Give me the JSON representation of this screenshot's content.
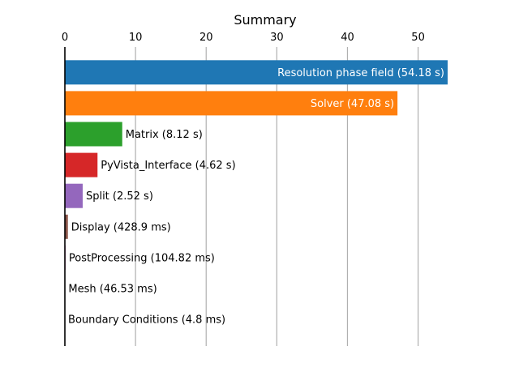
{
  "chart_data": {
    "type": "bar",
    "orientation": "horizontal",
    "title": "Summary",
    "xlabel": "",
    "ylabel": "",
    "xlim": [
      0,
      54.18
    ],
    "x_ticks": [
      0,
      10,
      20,
      30,
      40,
      50
    ],
    "grid": "vertical",
    "legend": "none",
    "bars": [
      {
        "label": "Resolution phase field (54.18 s)",
        "value": 54.18,
        "color": "#1f77b4",
        "label_inside": true
      },
      {
        "label": "Solver (47.08 s)",
        "value": 47.08,
        "color": "#ff7f0e",
        "label_inside": true
      },
      {
        "label": "Matrix (8.12 s)",
        "value": 8.12,
        "color": "#2ca02c",
        "label_inside": false
      },
      {
        "label": "PyVista_Interface (4.62 s)",
        "value": 4.62,
        "color": "#d62728",
        "label_inside": false
      },
      {
        "label": "Split (2.52 s)",
        "value": 2.52,
        "color": "#9467bd",
        "label_inside": false
      },
      {
        "label": "Display (428.9 ms)",
        "value": 0.4289,
        "color": "#8c564b",
        "label_inside": false
      },
      {
        "label": "PostProcessing (104.82 ms)",
        "value": 0.10482,
        "color": "#e377c2",
        "label_inside": false
      },
      {
        "label": "Mesh (46.53 ms)",
        "value": 0.04653,
        "color": "#7f7f7f",
        "label_inside": false
      },
      {
        "label": "Boundary Conditions (4.8 ms)",
        "value": 0.0048,
        "color": "#bcbd22",
        "label_inside": false
      }
    ]
  }
}
